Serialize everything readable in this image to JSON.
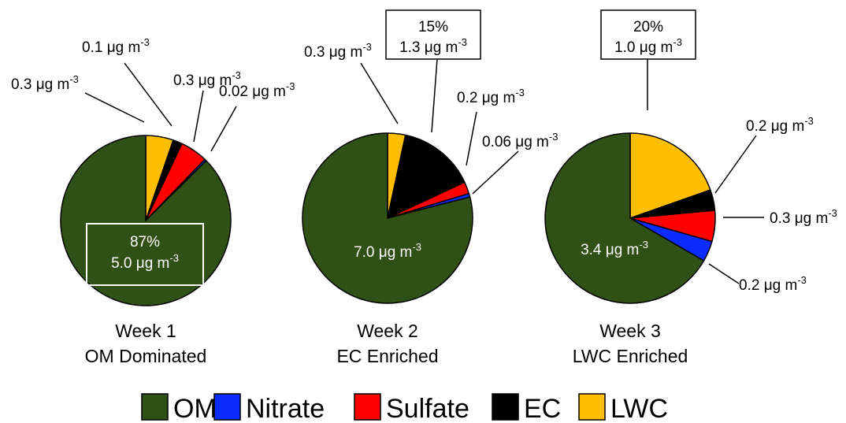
{
  "units": {
    "mu": "μg m",
    "exp": "-3"
  },
  "colors": {
    "OM": "#2f5116",
    "Nitrate": "#0a2cff",
    "Sulfate": "#ff0000",
    "EC": "#000000",
    "LWC": "#ffbf00"
  },
  "legend": {
    "items": [
      {
        "key": "OM",
        "label": "OM"
      },
      {
        "key": "Nitrate",
        "label": "Nitrate"
      },
      {
        "key": "Sulfate",
        "label": "Sulfate"
      },
      {
        "key": "EC",
        "label": "EC"
      },
      {
        "key": "LWC",
        "label": "LWC"
      }
    ]
  },
  "chart_data": [
    {
      "type": "pie",
      "title": "Week 1",
      "subtitle": "OM Dominated",
      "slices": [
        {
          "name": "LWC",
          "value": 0.3,
          "label": "0.3"
        },
        {
          "name": "EC",
          "value": 0.1,
          "label": "0.1"
        },
        {
          "name": "Sulfate",
          "value": 0.3,
          "label": "0.3"
        },
        {
          "name": "Nitrate",
          "value": 0.02,
          "label": "0.02"
        },
        {
          "name": "OM",
          "value": 5.0,
          "label": "5.0",
          "percent": "87%"
        }
      ]
    },
    {
      "type": "pie",
      "title": "Week 2",
      "subtitle": "EC Enriched",
      "slices": [
        {
          "name": "LWC",
          "value": 0.3,
          "label": "0.3"
        },
        {
          "name": "EC",
          "value": 1.3,
          "label": "1.3",
          "percent": "15%"
        },
        {
          "name": "Sulfate",
          "value": 0.2,
          "label": "0.2"
        },
        {
          "name": "Nitrate",
          "value": 0.06,
          "label": "0.06"
        },
        {
          "name": "OM",
          "value": 7.0,
          "label": "7.0"
        }
      ]
    },
    {
      "type": "pie",
      "title": "Week 3",
      "subtitle": "LWC Enriched",
      "slices": [
        {
          "name": "LWC",
          "value": 1.0,
          "label": "1.0",
          "percent": "20%"
        },
        {
          "name": "EC",
          "value": 0.2,
          "label": "0.2"
        },
        {
          "name": "Sulfate",
          "value": 0.3,
          "label": "0.3"
        },
        {
          "name": "Nitrate",
          "value": 0.2,
          "label": "0.2"
        },
        {
          "name": "OM",
          "value": 3.4,
          "label": "3.4"
        }
      ]
    }
  ]
}
